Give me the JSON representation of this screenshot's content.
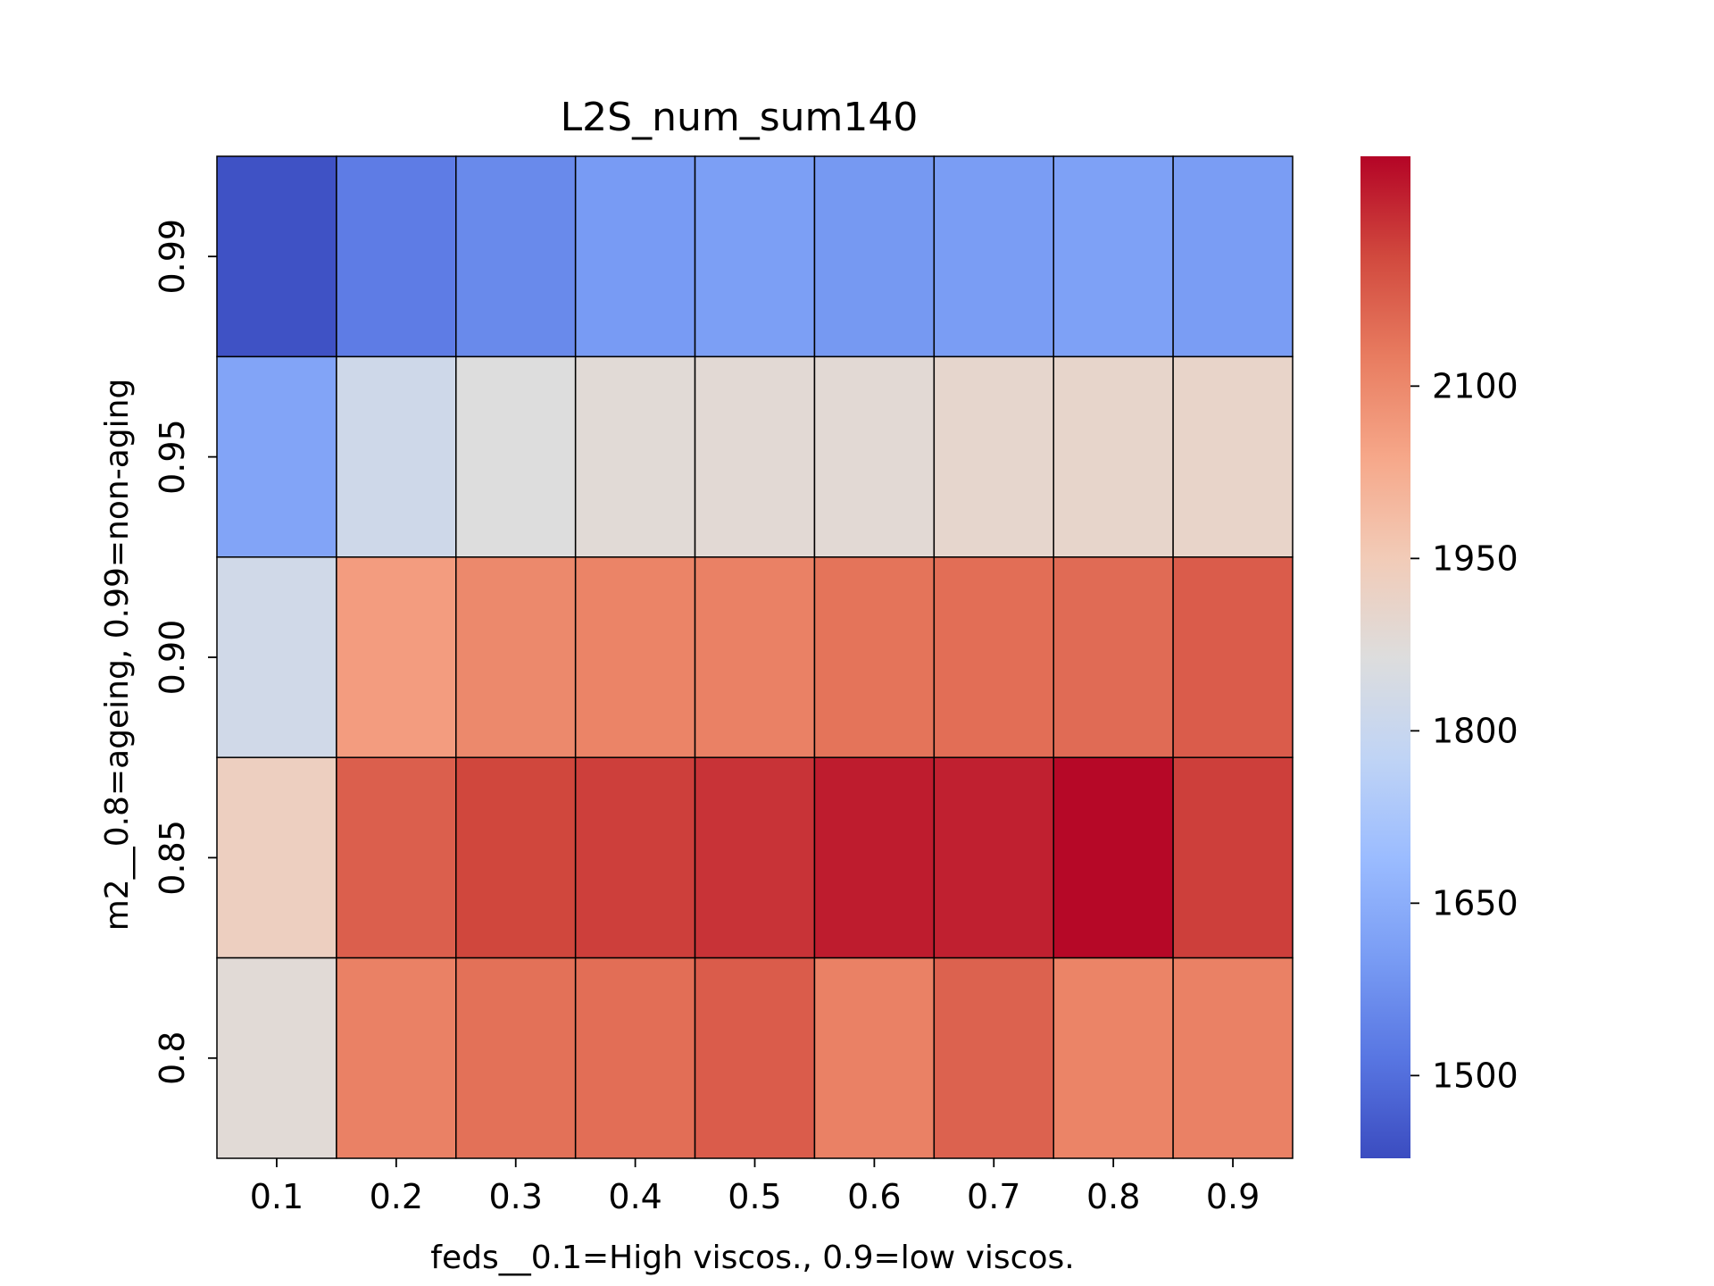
{
  "chart_data": {
    "type": "heatmap",
    "title": "L2S_num_sum140",
    "xlabel": "feds__0.1=High viscos., 0.9=low viscos.",
    "ylabel": "m2__0.8=ageing, 0.99=non-aging",
    "x_categories": [
      "0.1",
      "0.2",
      "0.3",
      "0.4",
      "0.5",
      "0.6",
      "0.7",
      "0.8",
      "0.9"
    ],
    "y_categories": [
      "0.99",
      "0.95",
      "0.90",
      "0.85",
      "0.8"
    ],
    "values": [
      [
        1440,
        1530,
        1560,
        1600,
        1610,
        1595,
        1605,
        1615,
        1605
      ],
      [
        1625,
        1820,
        1865,
        1880,
        1885,
        1885,
        1900,
        1905,
        1910
      ],
      [
        1825,
        2060,
        2100,
        2110,
        2115,
        2140,
        2150,
        2155,
        2180
      ],
      [
        1930,
        2175,
        2215,
        2225,
        2240,
        2270,
        2265,
        2295,
        2225
      ],
      [
        1880,
        2115,
        2145,
        2150,
        2180,
        2115,
        2170,
        2110,
        2115
      ]
    ],
    "colormap": "coolwarm",
    "vmin": 1428,
    "vmax": 2300,
    "colorbar_ticks": [
      1500,
      1650,
      1800,
      1950,
      2100
    ],
    "colorbar_tick_labels": [
      "1500",
      "1650",
      "1800",
      "1950",
      "2100"
    ],
    "cell_border_color": "#000000",
    "grid": false,
    "legend": "colorbar right"
  }
}
